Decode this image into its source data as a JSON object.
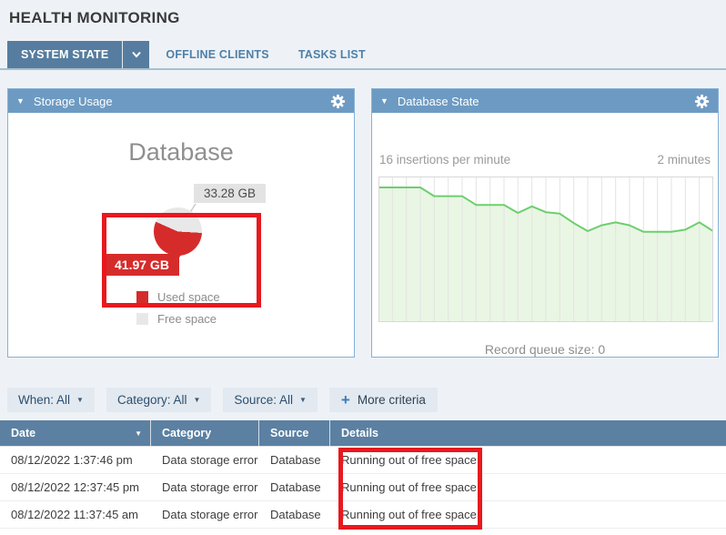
{
  "page": {
    "title": "HEALTH MONITORING"
  },
  "icons": {
    "collapse_triangle": "▼",
    "sort_desc": "▼",
    "dropdown_caret": "▼",
    "plus": "+"
  },
  "tabs": {
    "items": [
      {
        "label": "SYSTEM STATE",
        "active": true,
        "has_dropdown": true
      },
      {
        "label": "OFFLINE CLIENTS",
        "active": false
      },
      {
        "label": "TASKS LIST",
        "active": false
      }
    ]
  },
  "storage_panel": {
    "title": "Storage Usage",
    "chart_title": "Database"
  },
  "database_panel": {
    "title": "Database State",
    "rate_text": "16 insertions per minute",
    "window_text": "2 minutes",
    "queue_text": "Record queue size: 0"
  },
  "filters": {
    "when": "When: All",
    "category": "Category: All",
    "source": "Source: All",
    "more": "More criteria"
  },
  "table": {
    "columns": [
      "Date",
      "Category",
      "Source",
      "Details"
    ],
    "sort_column": "Date",
    "sort_direction": "desc",
    "rows": [
      {
        "date": "08/12/2022 1:37:46 pm",
        "category": "Data storage error",
        "source": "Database",
        "details": "Running out of free space"
      },
      {
        "date": "08/12/2022 12:37:45 pm",
        "category": "Data storage error",
        "source": "Database",
        "details": "Running out of free space"
      },
      {
        "date": "08/12/2022 11:37:45 am",
        "category": "Data storage error",
        "source": "Database",
        "details": "Running out of free space"
      }
    ]
  },
  "colors": {
    "accent_red": "#d62b2b",
    "annotation_red": "#e7191f",
    "panel_header_blue": "#6d9ac2",
    "active_tab_blue": "#567d9f",
    "table_header_blue": "#5b80a2",
    "chart_line_green": "#6dcf6d",
    "chart_fill_green": "#e9f6e4",
    "pie_free_gray": "#e8e8e8"
  },
  "chart_data": [
    {
      "type": "pie",
      "title": "Database",
      "slices": [
        {
          "label": "Used space",
          "value": 41.97,
          "unit": "GB",
          "display": "41.97 GB",
          "color": "#d62b2b"
        },
        {
          "label": "Free space",
          "value": 33.28,
          "unit": "GB",
          "display": "33.28 GB",
          "color": "#e8e8e8"
        }
      ],
      "legend_position": "bottom"
    },
    {
      "type": "area",
      "title": "Database State",
      "subtitle_left": "16 insertions per minute",
      "subtitle_right": "2 minutes",
      "x_description": "25 evenly spaced samples across the 2-minute window (no x tick labels shown)",
      "values": [
        18.5,
        18.5,
        18.5,
        18.5,
        17.3,
        17.3,
        17.3,
        16.1,
        16.1,
        16.1,
        15.0,
        15.9,
        15.1,
        14.9,
        13.6,
        12.5,
        13.3,
        13.7,
        13.3,
        12.4,
        12.4,
        12.4,
        12.7,
        13.7,
        12.5
      ],
      "ylim": [
        0,
        20
      ],
      "grid": "vertical-only",
      "legend_position": "none",
      "footer": "Record queue size: 0"
    }
  ]
}
